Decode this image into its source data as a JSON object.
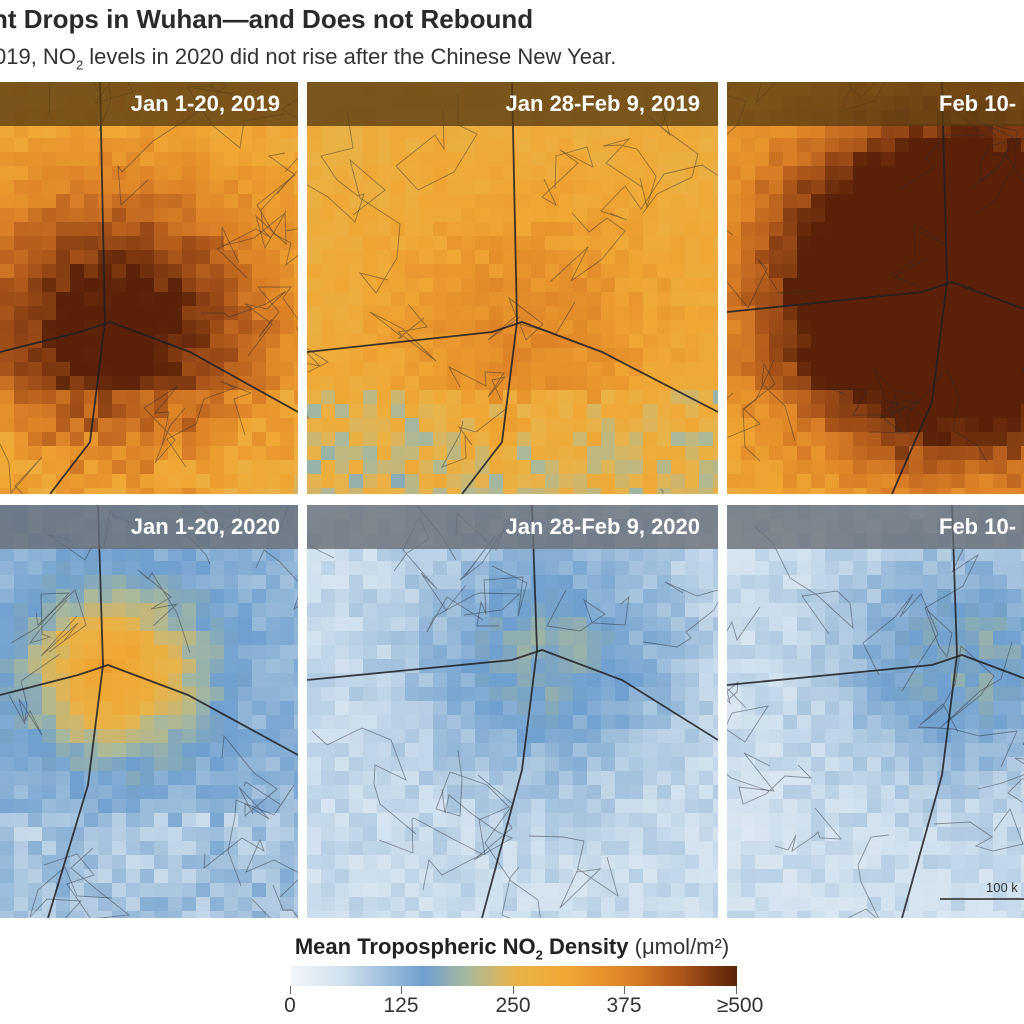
{
  "title": "nt Drops in Wuhan—and Does not Rebound",
  "subtitle_pre": "019, NO",
  "subtitle_sub": "2",
  "subtitle_post": " levels in 2020 did not rise after the Chinese New Year.",
  "panels": {
    "r1c1": "Jan 1-20, 2019",
    "r1c2": "Jan 28-Feb 9, 2019",
    "r1c3": "Feb 10-",
    "r2c1": "Jan 1-20, 2020",
    "r2c2": "Jan 28-Feb 9, 2020",
    "r2c3": "Feb 10-"
  },
  "legend": {
    "title_bold_pre": "Mean Tropospheric NO",
    "title_sub": "2",
    "title_bold_post": " Density",
    "units": " (μmol/m²)",
    "ticks": [
      "0",
      "125",
      "250",
      "375",
      "≥500"
    ],
    "colors": [
      "#f4f7fb",
      "#6e9fcf",
      "#e8b34a",
      "#dd8127",
      "#5a2108"
    ]
  },
  "scale_bar": "100 k"
}
